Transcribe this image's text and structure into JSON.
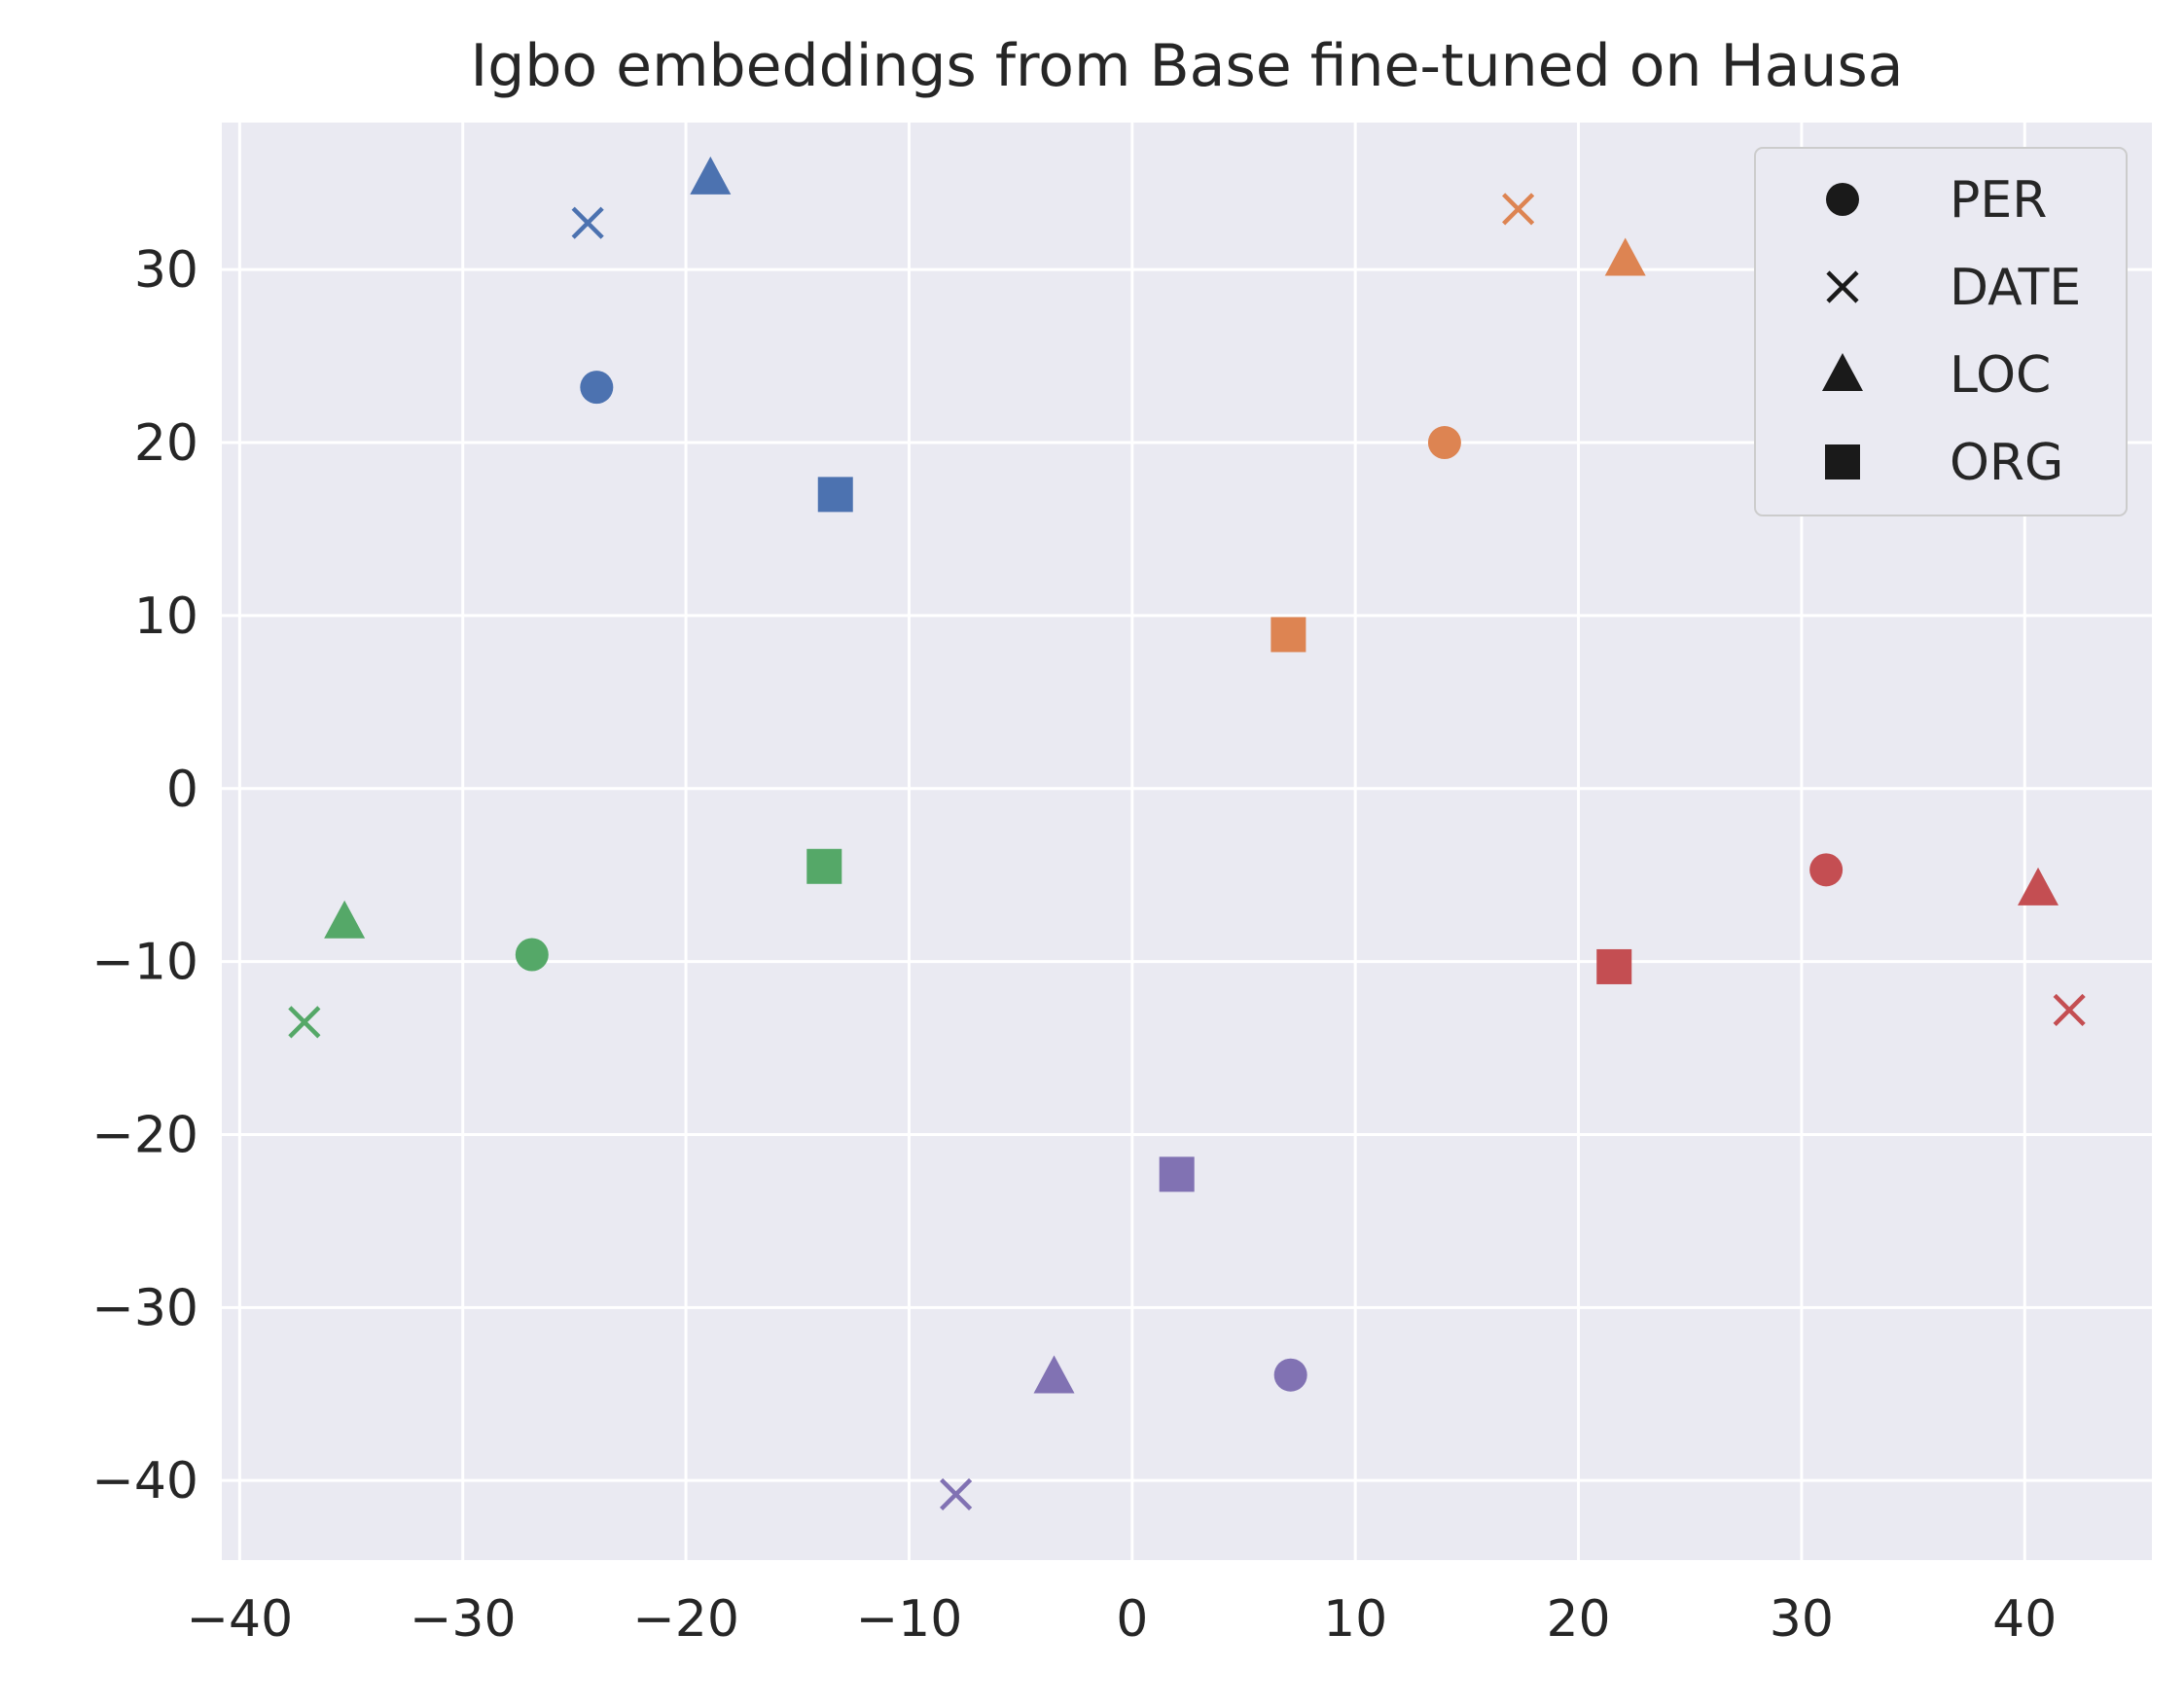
{
  "chart_data": {
    "type": "scatter",
    "title": "Igbo embeddings from Base fine-tuned on Hausa",
    "xlabel": "",
    "ylabel": "",
    "xlim": [
      -40.8,
      45.7
    ],
    "ylim": [
      -44.6,
      38.5
    ],
    "xticks": [
      -40,
      -30,
      -20,
      -10,
      0,
      10,
      20,
      30,
      40
    ],
    "yticks": [
      -40,
      -30,
      -20,
      -10,
      0,
      10,
      20,
      30
    ],
    "grid": true,
    "legend_position": "top-right",
    "legend": [
      {
        "label": "PER",
        "marker": "circle"
      },
      {
        "label": "DATE",
        "marker": "x"
      },
      {
        "label": "LOC",
        "marker": "triangle"
      },
      {
        "label": "ORG",
        "marker": "square"
      }
    ],
    "colors": {
      "blue": "#4c72b0",
      "orange": "#dd8452",
      "green": "#55a868",
      "red": "#c44e52",
      "purple": "#8172b3",
      "background": "#eaeaf2",
      "grid": "#ffffff",
      "legend_marker": "#1a1a1a"
    },
    "points": [
      {
        "x": -24.0,
        "y": 23.2,
        "marker": "circle",
        "color": "blue"
      },
      {
        "x": -24.4,
        "y": 32.7,
        "marker": "x",
        "color": "blue"
      },
      {
        "x": -18.9,
        "y": 35.3,
        "marker": "triangle",
        "color": "blue"
      },
      {
        "x": -13.3,
        "y": 17.0,
        "marker": "square",
        "color": "blue"
      },
      {
        "x": 14.0,
        "y": 20.0,
        "marker": "circle",
        "color": "orange"
      },
      {
        "x": 17.3,
        "y": 33.5,
        "marker": "x",
        "color": "orange"
      },
      {
        "x": 22.1,
        "y": 30.6,
        "marker": "triangle",
        "color": "orange"
      },
      {
        "x": 7.0,
        "y": 8.9,
        "marker": "square",
        "color": "orange"
      },
      {
        "x": -26.9,
        "y": -9.6,
        "marker": "circle",
        "color": "green"
      },
      {
        "x": -37.1,
        "y": -13.5,
        "marker": "x",
        "color": "green"
      },
      {
        "x": -35.3,
        "y": -7.7,
        "marker": "triangle",
        "color": "green"
      },
      {
        "x": -13.8,
        "y": -4.5,
        "marker": "square",
        "color": "green"
      },
      {
        "x": 31.1,
        "y": -4.7,
        "marker": "circle",
        "color": "red"
      },
      {
        "x": 42.0,
        "y": -12.8,
        "marker": "x",
        "color": "red"
      },
      {
        "x": 40.6,
        "y": -5.8,
        "marker": "triangle",
        "color": "red"
      },
      {
        "x": 21.6,
        "y": -10.3,
        "marker": "square",
        "color": "red"
      },
      {
        "x": 7.1,
        "y": -33.9,
        "marker": "circle",
        "color": "purple"
      },
      {
        "x": -7.9,
        "y": -40.8,
        "marker": "x",
        "color": "purple"
      },
      {
        "x": -3.5,
        "y": -34.0,
        "marker": "triangle",
        "color": "purple"
      },
      {
        "x": 2.0,
        "y": -22.3,
        "marker": "square",
        "color": "purple"
      }
    ]
  }
}
